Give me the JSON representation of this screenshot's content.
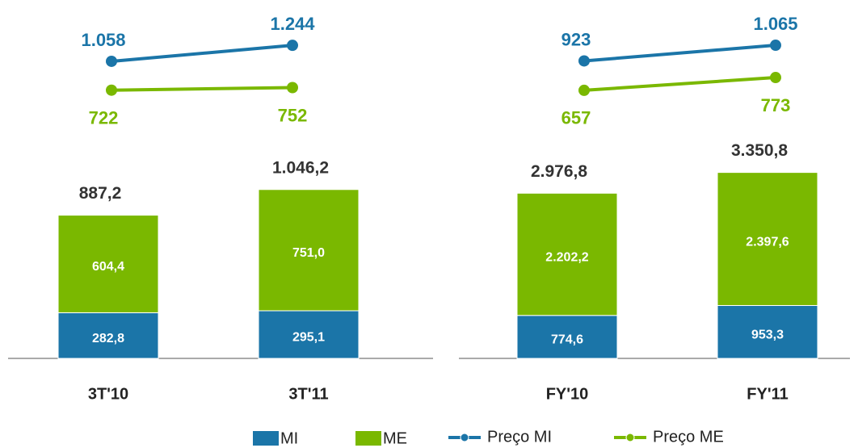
{
  "chart_data": [
    {
      "type": "bar",
      "categories": [
        "3T'10",
        "3T'11"
      ],
      "ylim": [
        0,
        2200
      ],
      "y2lim": [
        550,
        1490
      ],
      "series": [
        {
          "name": "MI",
          "color": "#1b75a8",
          "values": [
            282.8,
            295.1
          ],
          "value_labels": [
            "282,8",
            "295,1"
          ]
        },
        {
          "name": "ME",
          "color": "#7ab800",
          "values": [
            604.4,
            751.0
          ],
          "value_labels": [
            "604,4",
            "751,0"
          ]
        },
        {
          "name": "Preço MI",
          "type": "line",
          "axis": "y2",
          "color": "#1b75a8",
          "values": [
            1058,
            1244
          ],
          "value_labels": [
            "1.058",
            "1.244"
          ]
        },
        {
          "name": "Preço ME",
          "type": "line",
          "axis": "y2",
          "color": "#7ab800",
          "values": [
            722,
            752
          ]
        }
      ],
      "totals": [
        887.2,
        1046.2
      ],
      "total_labels": [
        "887,2",
        "1.046,2"
      ]
    },
    {
      "type": "bar",
      "categories": [
        "FY'10",
        "FY'11"
      ],
      "ylim": [
        0,
        6400
      ],
      "y2lim": [
        525,
        1255
      ],
      "series": [
        {
          "color": "#1b75a8",
          "values": [
            774.6,
            953.3
          ],
          "value_labels": [
            "774,6",
            "953,3"
          ]
        },
        {
          "color": "#7ab800",
          "values": [
            2202.2,
            2397.6
          ],
          "value_labels": [
            "2.202,2",
            "2.397,6"
          ]
        },
        {
          "type": "line",
          "axis": "y2",
          "color": "#1b75a8",
          "values": [
            923,
            1065
          ],
          "value_labels": [
            "923",
            "1.065"
          ]
        },
        {
          "type": "line",
          "axis": "y2",
          "color": "#7ab800",
          "values": [
            657,
            773
          ]
        }
      ],
      "totals": [
        2976.8,
        3350.8
      ],
      "total_labels": [
        "2.976,8",
        "3.350,8"
      ]
    }
  ]
}
